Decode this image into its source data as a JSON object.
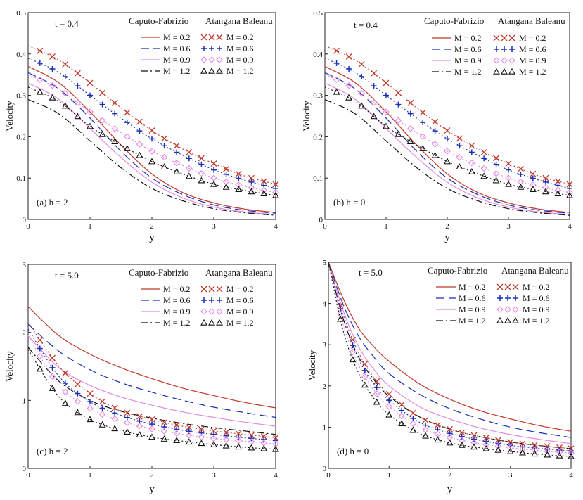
{
  "colors": {
    "M02": "#c0392b",
    "M06": "#1a2fb8",
    "M09": "#e58be0",
    "M12": "#111111"
  },
  "legend": {
    "cf_header": "Caputo-Fabrizio",
    "ab_header": "Atangana Baleanu",
    "entries": [
      "M = 0.2",
      "M = 0.6",
      "M = 0.9",
      "M = 1.2"
    ]
  },
  "chart_data": [
    {
      "id": "a",
      "type": "line",
      "time_label": "t = 0.4",
      "panel_label": "(a)  h  =  2",
      "xlabel": "y",
      "ylabel": "Velocity",
      "xlim": [
        0,
        4
      ],
      "ylim": [
        0,
        0.5
      ],
      "xticks": [
        "0",
        "1",
        "2",
        "3",
        "4"
      ],
      "yticks": [
        "0",
        "0.1",
        "0.2",
        "0.3",
        "0.4",
        "0.5"
      ],
      "x": [
        0,
        0.5,
        1,
        1.5,
        2,
        2.5,
        3,
        3.5,
        4
      ],
      "series": [
        {
          "name": "Caputo-Fabrizio M = 0.2",
          "method": "CF",
          "m": "M02",
          "values": [
            0.37,
            0.33,
            0.26,
            0.18,
            0.11,
            0.065,
            0.04,
            0.025,
            0.017
          ]
        },
        {
          "name": "Caputo-Fabrizio M = 0.6",
          "method": "CF",
          "m": "M06",
          "values": [
            0.355,
            0.315,
            0.245,
            0.165,
            0.1,
            0.06,
            0.035,
            0.022,
            0.015
          ]
        },
        {
          "name": "Caputo-Fabrizio M = 0.9",
          "method": "CF",
          "m": "M09",
          "values": [
            0.33,
            0.29,
            0.22,
            0.15,
            0.09,
            0.052,
            0.03,
            0.018,
            0.012
          ]
        },
        {
          "name": "Caputo-Fabrizio M = 1.2",
          "method": "CF",
          "m": "M12",
          "values": [
            0.29,
            0.255,
            0.19,
            0.125,
            0.075,
            0.045,
            0.026,
            0.016,
            0.01
          ]
        },
        {
          "name": "Atangana Baleanu M = 0.2",
          "method": "AB",
          "m": "M02",
          "values": [
            0.42,
            0.385,
            0.33,
            0.27,
            0.215,
            0.17,
            0.135,
            0.105,
            0.085
          ]
        },
        {
          "name": "Atangana Baleanu M = 0.6",
          "method": "AB",
          "m": "M06",
          "values": [
            0.39,
            0.355,
            0.3,
            0.245,
            0.195,
            0.155,
            0.12,
            0.095,
            0.075
          ]
        },
        {
          "name": "Atangana Baleanu M = 0.9",
          "method": "AB",
          "m": "M09",
          "values": [
            0.35,
            0.315,
            0.26,
            0.21,
            0.165,
            0.13,
            0.1,
            0.08,
            0.065
          ]
        },
        {
          "name": "Atangana Baleanu M = 1.2",
          "method": "AB",
          "m": "M12",
          "values": [
            0.32,
            0.285,
            0.225,
            0.18,
            0.14,
            0.11,
            0.085,
            0.07,
            0.058
          ]
        }
      ]
    },
    {
      "id": "b",
      "type": "line",
      "time_label": "t = 0.4",
      "panel_label": "(b)  h  =  0",
      "xlabel": "y",
      "ylabel": "Velocity",
      "xlim": [
        0,
        4
      ],
      "ylim": [
        0,
        0.5
      ],
      "xticks": [
        "0",
        "1",
        "2",
        "3",
        "4"
      ],
      "yticks": [
        "0",
        "0.1",
        "0.2",
        "0.3",
        "0.4",
        "0.5"
      ],
      "x": [
        0,
        0.5,
        1,
        1.5,
        2,
        2.5,
        3,
        3.5,
        4
      ],
      "series": [
        {
          "name": "Caputo-Fabrizio M = 0.2",
          "method": "CF",
          "m": "M02",
          "values": [
            0.37,
            0.33,
            0.26,
            0.18,
            0.11,
            0.065,
            0.04,
            0.025,
            0.017
          ]
        },
        {
          "name": "Caputo-Fabrizio M = 0.6",
          "method": "CF",
          "m": "M06",
          "values": [
            0.355,
            0.315,
            0.245,
            0.165,
            0.1,
            0.06,
            0.035,
            0.022,
            0.015
          ]
        },
        {
          "name": "Caputo-Fabrizio M = 0.9",
          "method": "CF",
          "m": "M09",
          "values": [
            0.33,
            0.29,
            0.22,
            0.15,
            0.09,
            0.052,
            0.03,
            0.018,
            0.012
          ]
        },
        {
          "name": "Caputo-Fabrizio M = 1.2",
          "method": "CF",
          "m": "M12",
          "values": [
            0.29,
            0.255,
            0.19,
            0.125,
            0.075,
            0.045,
            0.026,
            0.016,
            0.01
          ]
        },
        {
          "name": "Atangana Baleanu M = 0.2",
          "method": "AB",
          "m": "M02",
          "values": [
            0.42,
            0.385,
            0.33,
            0.27,
            0.215,
            0.17,
            0.135,
            0.105,
            0.085
          ]
        },
        {
          "name": "Atangana Baleanu M = 0.6",
          "method": "AB",
          "m": "M06",
          "values": [
            0.39,
            0.355,
            0.3,
            0.245,
            0.195,
            0.155,
            0.12,
            0.095,
            0.075
          ]
        },
        {
          "name": "Atangana Baleanu M = 0.9",
          "method": "AB",
          "m": "M09",
          "values": [
            0.35,
            0.315,
            0.26,
            0.21,
            0.165,
            0.13,
            0.1,
            0.08,
            0.065
          ]
        },
        {
          "name": "Atangana Baleanu M = 1.2",
          "method": "AB",
          "m": "M12",
          "values": [
            0.32,
            0.285,
            0.225,
            0.18,
            0.14,
            0.11,
            0.085,
            0.07,
            0.058
          ]
        }
      ]
    },
    {
      "id": "c",
      "type": "line",
      "time_label": "t = 5.0",
      "panel_label": "(c)  h  =  2",
      "xlabel": "y",
      "ylabel": "Velocity",
      "xlim": [
        0,
        4
      ],
      "ylim": [
        0,
        3
      ],
      "xticks": [
        "0",
        "1",
        "2",
        "3",
        "4"
      ],
      "yticks": [
        "0",
        "1",
        "2",
        "3"
      ],
      "x": [
        0,
        0.5,
        1,
        1.5,
        2,
        2.5,
        3,
        3.5,
        4
      ],
      "series": [
        {
          "name": "Caputo-Fabrizio M = 0.2",
          "method": "CF",
          "m": "M02",
          "values": [
            2.38,
            1.95,
            1.68,
            1.48,
            1.32,
            1.18,
            1.07,
            0.97,
            0.89
          ]
        },
        {
          "name": "Caputo-Fabrizio M = 0.6",
          "method": "CF",
          "m": "M06",
          "values": [
            2.12,
            1.72,
            1.45,
            1.26,
            1.12,
            1.0,
            0.9,
            0.82,
            0.75
          ]
        },
        {
          "name": "Caputo-Fabrizio M = 0.9",
          "method": "CF",
          "m": "M09",
          "values": [
            1.95,
            1.48,
            1.22,
            1.05,
            0.93,
            0.83,
            0.75,
            0.68,
            0.62
          ]
        },
        {
          "name": "Caputo-Fabrizio M = 1.2",
          "method": "CF",
          "m": "M12",
          "values": [
            1.78,
            1.28,
            1.0,
            0.84,
            0.74,
            0.66,
            0.6,
            0.55,
            0.5
          ]
        },
        {
          "name": "Atangana Baleanu M = 0.2",
          "method": "AB",
          "m": "M02",
          "values": [
            2.15,
            1.5,
            1.1,
            0.85,
            0.72,
            0.62,
            0.55,
            0.5,
            0.45
          ]
        },
        {
          "name": "Atangana Baleanu M = 0.6",
          "method": "AB",
          "m": "M06",
          "values": [
            2.05,
            1.35,
            0.98,
            0.78,
            0.65,
            0.56,
            0.5,
            0.45,
            0.41
          ]
        },
        {
          "name": "Atangana Baleanu M = 0.9",
          "method": "AB",
          "m": "M09",
          "values": [
            1.95,
            1.22,
            0.88,
            0.7,
            0.58,
            0.5,
            0.44,
            0.4,
            0.36
          ]
        },
        {
          "name": "Atangana Baleanu M = 1.2",
          "method": "AB",
          "m": "M12",
          "values": [
            1.75,
            1.05,
            0.72,
            0.56,
            0.46,
            0.4,
            0.35,
            0.31,
            0.28
          ]
        }
      ]
    },
    {
      "id": "d",
      "type": "line",
      "time_label": "t = 5.0",
      "panel_label": "(d)  h  =  0",
      "xlabel": "y",
      "ylabel": "Velocity",
      "xlim": [
        0,
        4
      ],
      "ylim": [
        0,
        5
      ],
      "xticks": [
        "0",
        "1",
        "2",
        "3",
        "4"
      ],
      "yticks": [
        "0",
        "1",
        "2",
        "3",
        "4",
        "5"
      ],
      "x": [
        0,
        0.25,
        0.5,
        0.75,
        1,
        1.5,
        2,
        2.5,
        3,
        3.5,
        4
      ],
      "series": [
        {
          "name": "Caputo-Fabrizio M = 0.2",
          "method": "CF",
          "m": "M02",
          "values": [
            5.0,
            4.1,
            3.4,
            2.95,
            2.6,
            2.05,
            1.68,
            1.4,
            1.2,
            1.03,
            0.9
          ]
        },
        {
          "name": "Caputo-Fabrizio M = 0.6",
          "method": "CF",
          "m": "M06",
          "values": [
            5.0,
            3.95,
            3.2,
            2.7,
            2.3,
            1.8,
            1.45,
            1.2,
            1.0,
            0.86,
            0.75
          ]
        },
        {
          "name": "Caputo-Fabrizio M = 0.9",
          "method": "CF",
          "m": "M09",
          "values": [
            5.0,
            3.8,
            2.95,
            2.4,
            2.0,
            1.5,
            1.2,
            0.98,
            0.82,
            0.7,
            0.6
          ]
        },
        {
          "name": "Caputo-Fabrizio M = 1.2",
          "method": "CF",
          "m": "M12",
          "values": [
            5.0,
            3.6,
            2.7,
            2.15,
            1.75,
            1.25,
            0.95,
            0.77,
            0.64,
            0.55,
            0.48
          ]
        },
        {
          "name": "Atangana Baleanu M = 0.2",
          "method": "AB",
          "m": "M02",
          "values": [
            5.0,
            3.7,
            2.8,
            2.2,
            1.8,
            1.25,
            0.95,
            0.77,
            0.64,
            0.55,
            0.48
          ]
        },
        {
          "name": "Atangana Baleanu M = 0.6",
          "method": "AB",
          "m": "M06",
          "values": [
            5.0,
            3.6,
            2.65,
            2.05,
            1.65,
            1.12,
            0.85,
            0.68,
            0.56,
            0.48,
            0.42
          ]
        },
        {
          "name": "Atangana Baleanu M = 0.9",
          "method": "AB",
          "m": "M09",
          "values": [
            5.0,
            3.45,
            2.5,
            1.9,
            1.5,
            1.0,
            0.75,
            0.6,
            0.5,
            0.43,
            0.37
          ]
        },
        {
          "name": "Atangana Baleanu M = 1.2",
          "method": "AB",
          "m": "M12",
          "values": [
            5.0,
            3.3,
            2.3,
            1.7,
            1.3,
            0.85,
            0.62,
            0.5,
            0.41,
            0.34,
            0.29
          ]
        }
      ]
    }
  ]
}
